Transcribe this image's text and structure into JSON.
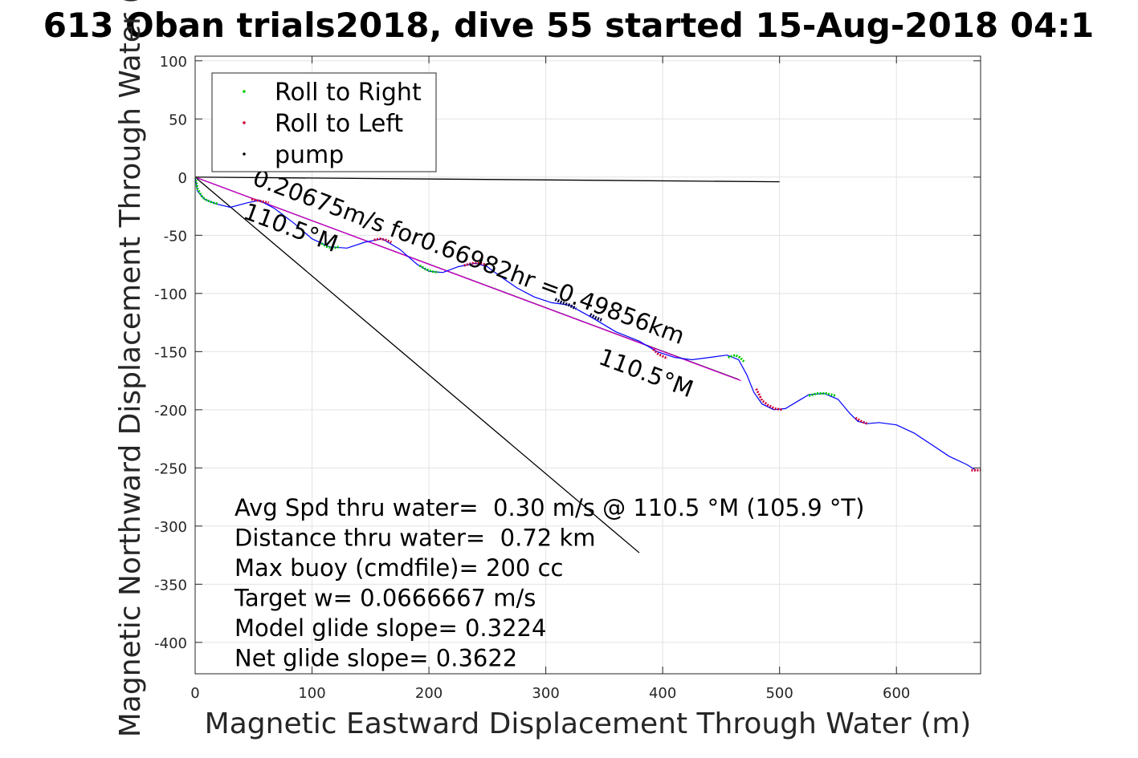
{
  "chart_data": {
    "type": "line",
    "title": "613 Oban trials2018, dive 55 started 15-Aug-2018 04:1",
    "xlabel": "Magnetic Eastward Displacement Through Water (m)",
    "ylabel": "Magnetic Northward Displacement Through Water (",
    "xlim": [
      0,
      672
    ],
    "ylim": [
      -427,
      104
    ],
    "xticks": [
      0,
      100,
      200,
      300,
      400,
      500,
      600
    ],
    "yticks": [
      100,
      50,
      0,
      -50,
      -100,
      -150,
      -200,
      -250,
      -300,
      -350,
      -400
    ],
    "grid": true,
    "legend_position": "top-left",
    "legend": [
      {
        "label": "Roll to Right",
        "color": "#00cc00"
      },
      {
        "label": "Roll to Left",
        "color": "#cc0033"
      },
      {
        "label": "pump",
        "color": "#000000"
      }
    ],
    "track": {
      "name": "track",
      "color": "#0000ff",
      "x": [
        0,
        2,
        8,
        18,
        30,
        45,
        55,
        68,
        85,
        100,
        115,
        130,
        145,
        160,
        175,
        190,
        200,
        212,
        225,
        240,
        250,
        262,
        275,
        290,
        305,
        320,
        340,
        360,
        380,
        395,
        410,
        425,
        440,
        455,
        465,
        472,
        478,
        485,
        495,
        505,
        515,
        525,
        538,
        550,
        560,
        567,
        575,
        585,
        600,
        615,
        630,
        645,
        660,
        668
      ],
      "y": [
        0,
        -12,
        -19,
        -23,
        -26,
        -22,
        -20,
        -27,
        -40,
        -53,
        -60,
        -61,
        -56,
        -53,
        -62,
        -75,
        -81,
        -82,
        -77,
        -74,
        -77,
        -86,
        -95,
        -103,
        -108,
        -110,
        -121,
        -133,
        -141,
        -150,
        -155,
        -157,
        -155,
        -153,
        -157,
        -170,
        -185,
        -195,
        -200,
        -199,
        -193,
        -187,
        -186,
        -191,
        -203,
        -210,
        -212,
        -211,
        -213,
        -220,
        -230,
        -240,
        -247,
        -252
      ]
    },
    "roll_right": [
      {
        "x": [
          0,
          2,
          6,
          10,
          15,
          20
        ],
        "y": [
          0,
          -10,
          -17,
          -20,
          -22,
          -23
        ]
      },
      {
        "x": [
          108,
          113,
          118,
          123
        ],
        "y": [
          -57,
          -60,
          -61,
          -60
        ]
      },
      {
        "x": [
          192,
          197,
          202,
          208
        ],
        "y": [
          -76,
          -79,
          -81,
          -82
        ]
      },
      {
        "x": [
          456,
          462,
          466,
          470
        ],
        "y": [
          -155,
          -153,
          -155,
          -159
        ]
      },
      {
        "x": [
          525,
          532,
          540,
          548
        ],
        "y": [
          -188,
          -186,
          -186,
          -188
        ]
      }
    ],
    "roll_left": [
      {
        "x": [
          48,
          53,
          58,
          63
        ],
        "y": [
          -19,
          -20,
          -21,
          -22
        ]
      },
      {
        "x": [
          153,
          158,
          163,
          168
        ],
        "y": [
          -54,
          -53,
          -54,
          -56
        ]
      },
      {
        "x": [
          230,
          237,
          244,
          251
        ],
        "y": [
          -76,
          -74,
          -74,
          -76
        ]
      },
      {
        "x": [
          392,
          396,
          400,
          404
        ],
        "y": [
          -148,
          -152,
          -154,
          -156
        ]
      },
      {
        "x": [
          480,
          485,
          490,
          496,
          502
        ],
        "y": [
          -182,
          -192,
          -196,
          -199,
          -200
        ]
      },
      {
        "x": [
          565,
          570,
          575
        ],
        "y": [
          -207,
          -210,
          -212
        ]
      },
      {
        "x": [
          664,
          668,
          672
        ],
        "y": [
          -252,
          -252,
          -252
        ]
      }
    ],
    "pump": [
      {
        "x": [
          308,
          314,
          320,
          326
        ],
        "y": [
          -105,
          -108,
          -110,
          -113
        ]
      },
      {
        "x": [
          338,
          343,
          348
        ],
        "y": [
          -118,
          -121,
          -123
        ]
      }
    ],
    "reference_lines": [
      {
        "name": "heading-line-east",
        "color": "#000000",
        "x": [
          0,
          500
        ],
        "y": [
          0,
          -4
        ]
      },
      {
        "name": "heading-line-diagonal",
        "color": "#000000",
        "x": [
          0,
          380
        ],
        "y": [
          0,
          -323
        ]
      },
      {
        "name": "avg-heading-line",
        "color": "#000000",
        "x": [
          0,
          465
        ],
        "y": [
          0,
          -174
        ]
      },
      {
        "name": "avg-heading-line-magenta",
        "color": "#cc00cc",
        "x": [
          0,
          467
        ],
        "y": [
          0,
          -175
        ]
      }
    ],
    "annotations": [
      {
        "name": "speed-annotation",
        "text": "0.20675m/s for0.66982hr =0.49856km",
        "x": 48,
        "y": -6,
        "rotate": 20.5
      },
      {
        "name": "heading-label-1",
        "text": "110.5°M",
        "x": 40,
        "y": -35,
        "rotate": 20.5
      },
      {
        "name": "heading-label-2",
        "text": "110.5°M",
        "x": 344,
        "y": -160,
        "rotate": 20.5
      }
    ],
    "stats": [
      "Avg Spd thru water=  0.30 m/s @ 110.5 °M (105.9 °T)",
      "Distance thru water=  0.72 km",
      "Max buoy (cmdfile)= 200 cc",
      "Target w= 0.0666667 m/s",
      "Model glide slope= 0.3224",
      "Net glide slope= 0.3622"
    ]
  }
}
